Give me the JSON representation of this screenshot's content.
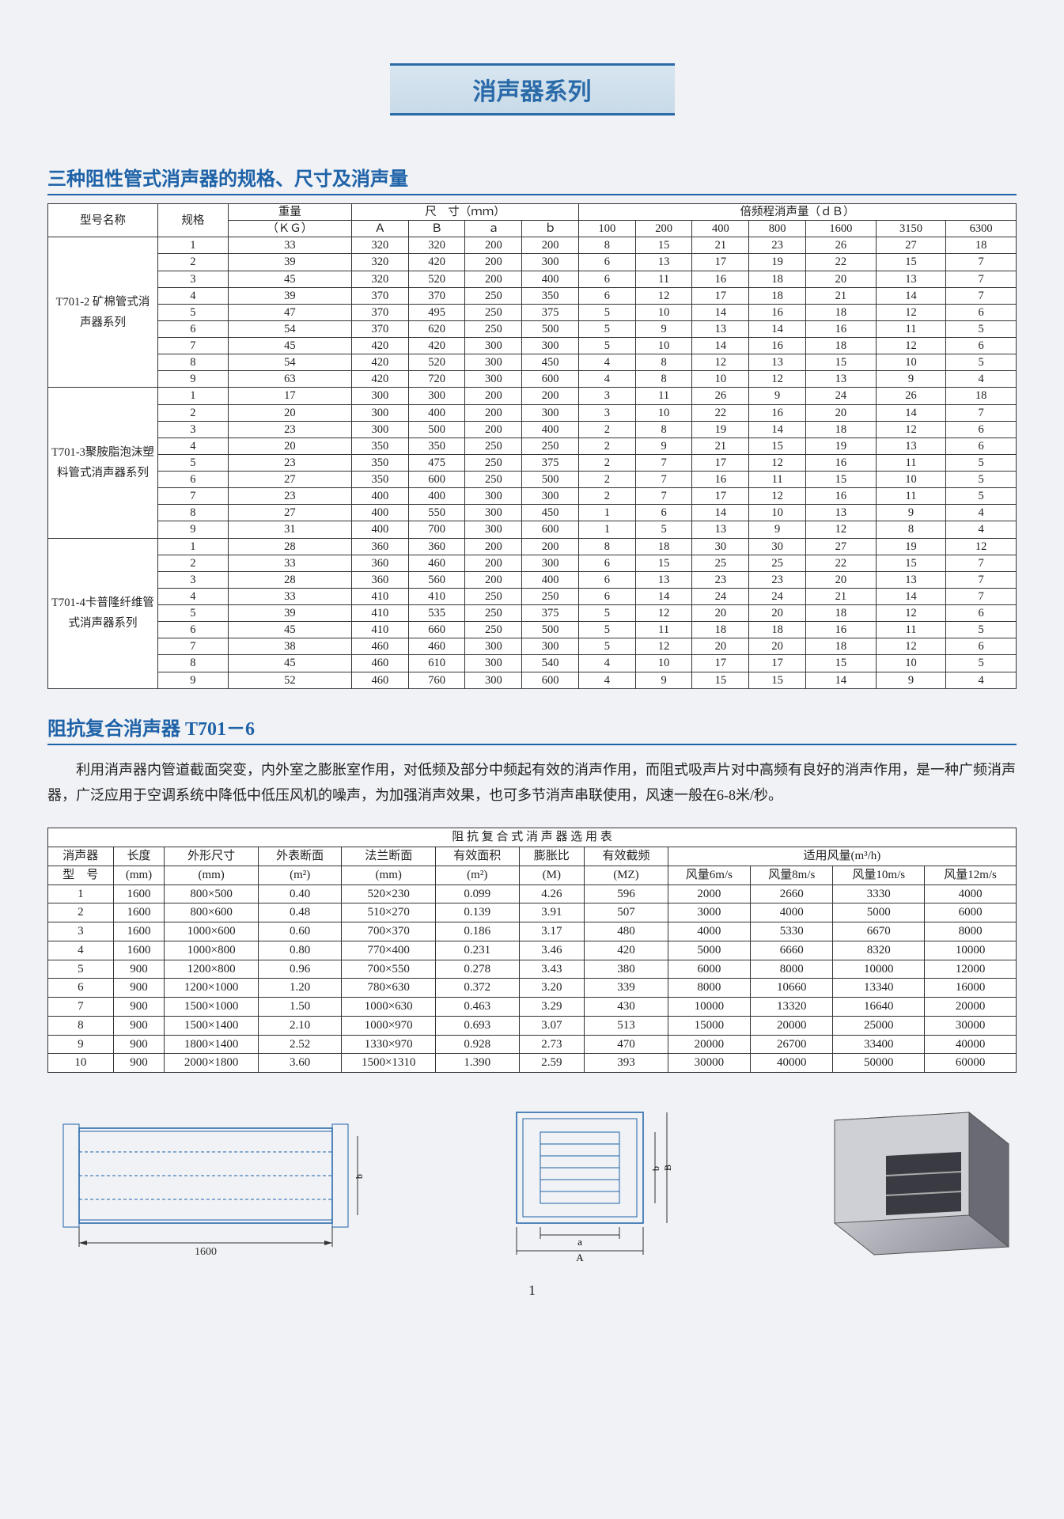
{
  "pageTitle": "消声器系列",
  "section1": {
    "heading": "三种阻性管式消声器的规格、尺寸及消声量",
    "topHeader": {
      "c1": "型号名称",
      "c2": "规格",
      "c3": "重量",
      "dimGroup": "尺　寸（ｍｍ）",
      "dbGroup": "倍频程消声量（ｄＢ）",
      "kg": "（ＫＧ）",
      "dimCols": [
        "Ａ",
        "Ｂ",
        "ａ",
        "ｂ"
      ],
      "dbCols": [
        "100",
        "200",
        "400",
        "800",
        "1600",
        "3150",
        "6300"
      ]
    },
    "groups": [
      {
        "name": "T701-2 矿棉管式消声器系列",
        "rows": [
          [
            "1",
            "33",
            "320",
            "320",
            "200",
            "200",
            "8",
            "15",
            "21",
            "23",
            "26",
            "27",
            "18"
          ],
          [
            "2",
            "39",
            "320",
            "420",
            "200",
            "300",
            "6",
            "13",
            "17",
            "19",
            "22",
            "15",
            "7"
          ],
          [
            "3",
            "45",
            "320",
            "520",
            "200",
            "400",
            "6",
            "11",
            "16",
            "18",
            "20",
            "13",
            "7"
          ],
          [
            "4",
            "39",
            "370",
            "370",
            "250",
            "350",
            "6",
            "12",
            "17",
            "18",
            "21",
            "14",
            "7"
          ],
          [
            "5",
            "47",
            "370",
            "495",
            "250",
            "375",
            "5",
            "10",
            "14",
            "16",
            "18",
            "12",
            "6"
          ],
          [
            "6",
            "54",
            "370",
            "620",
            "250",
            "500",
            "5",
            "9",
            "13",
            "14",
            "16",
            "11",
            "5"
          ],
          [
            "7",
            "45",
            "420",
            "420",
            "300",
            "300",
            "5",
            "10",
            "14",
            "16",
            "18",
            "12",
            "6"
          ],
          [
            "8",
            "54",
            "420",
            "520",
            "300",
            "450",
            "4",
            "8",
            "12",
            "13",
            "15",
            "10",
            "5"
          ],
          [
            "9",
            "63",
            "420",
            "720",
            "300",
            "600",
            "4",
            "8",
            "10",
            "12",
            "13",
            "9",
            "4"
          ]
        ]
      },
      {
        "name": "T701-3聚胺脂泡沫塑料管式消声器系列",
        "rows": [
          [
            "1",
            "17",
            "300",
            "300",
            "200",
            "200",
            "3",
            "11",
            "26",
            "9",
            "24",
            "26",
            "18"
          ],
          [
            "2",
            "20",
            "300",
            "400",
            "200",
            "300",
            "3",
            "10",
            "22",
            "16",
            "20",
            "14",
            "7"
          ],
          [
            "3",
            "23",
            "300",
            "500",
            "200",
            "400",
            "2",
            "8",
            "19",
            "14",
            "18",
            "12",
            "6"
          ],
          [
            "4",
            "20",
            "350",
            "350",
            "250",
            "250",
            "2",
            "9",
            "21",
            "15",
            "19",
            "13",
            "6"
          ],
          [
            "5",
            "23",
            "350",
            "475",
            "250",
            "375",
            "2",
            "7",
            "17",
            "12",
            "16",
            "11",
            "5"
          ],
          [
            "6",
            "27",
            "350",
            "600",
            "250",
            "500",
            "2",
            "7",
            "16",
            "11",
            "15",
            "10",
            "5"
          ],
          [
            "7",
            "23",
            "400",
            "400",
            "300",
            "300",
            "2",
            "7",
            "17",
            "12",
            "16",
            "11",
            "5"
          ],
          [
            "8",
            "27",
            "400",
            "550",
            "300",
            "450",
            "1",
            "6",
            "14",
            "10",
            "13",
            "9",
            "4"
          ],
          [
            "9",
            "31",
            "400",
            "700",
            "300",
            "600",
            "1",
            "5",
            "13",
            "9",
            "12",
            "8",
            "4"
          ]
        ]
      },
      {
        "name": "T701-4卡普隆纤维管式消声器系列",
        "rows": [
          [
            "1",
            "28",
            "360",
            "360",
            "200",
            "200",
            "8",
            "18",
            "30",
            "30",
            "27",
            "19",
            "12"
          ],
          [
            "2",
            "33",
            "360",
            "460",
            "200",
            "300",
            "6",
            "15",
            "25",
            "25",
            "22",
            "15",
            "7"
          ],
          [
            "3",
            "28",
            "360",
            "560",
            "200",
            "400",
            "6",
            "13",
            "23",
            "23",
            "20",
            "13",
            "7"
          ],
          [
            "4",
            "33",
            "410",
            "410",
            "250",
            "250",
            "6",
            "14",
            "24",
            "24",
            "21",
            "14",
            "7"
          ],
          [
            "5",
            "39",
            "410",
            "535",
            "250",
            "375",
            "5",
            "12",
            "20",
            "20",
            "18",
            "12",
            "6"
          ],
          [
            "6",
            "45",
            "410",
            "660",
            "250",
            "500",
            "5",
            "11",
            "18",
            "18",
            "16",
            "11",
            "5"
          ],
          [
            "7",
            "38",
            "460",
            "460",
            "300",
            "300",
            "5",
            "12",
            "20",
            "20",
            "18",
            "12",
            "6"
          ],
          [
            "8",
            "45",
            "460",
            "610",
            "300",
            "540",
            "4",
            "10",
            "17",
            "17",
            "15",
            "10",
            "5"
          ],
          [
            "9",
            "52",
            "460",
            "760",
            "300",
            "600",
            "4",
            "9",
            "15",
            "15",
            "14",
            "9",
            "4"
          ]
        ]
      }
    ]
  },
  "section2": {
    "heading": "阻抗复合消声器 T701－6",
    "paragraph": "利用消声器内管道截面突变，内外室之膨胀室作用，对低频及部分中频起有效的消声作用，而阻式吸声片对中高频有良好的消声作用，是一种广频消声器，广泛应用于空调系统中降低中低压风机的噪声，为加强消声效果，也可多节消声串联使用，风速一般在6-8米/秒。",
    "tableTitle": "阻 抗 复 合 式 消 声 器 选 用 表",
    "cols": {
      "c1a": "消声器",
      "c1b": "型　号",
      "c2a": "长度",
      "c2b": "(mm)",
      "c3a": "外形尺寸",
      "c3b": "(mm)",
      "c4a": "外表断面",
      "c4b": "(m²)",
      "c5a": "法兰断面",
      "c5b": "(mm)",
      "c6a": "有效面积",
      "c6b": "(m²)",
      "c7a": "膨胀比",
      "c7b": "(M)",
      "c8a": "有效截频",
      "c8b": "(MZ)",
      "flowGroup": "适用风量(m³/h)",
      "flowCols": [
        "风量6m/s",
        "风量8m/s",
        "风量10m/s",
        "风量12m/s"
      ]
    },
    "rows": [
      [
        "1",
        "1600",
        "800×500",
        "0.40",
        "520×230",
        "0.099",
        "4.26",
        "596",
        "2000",
        "2660",
        "3330",
        "4000"
      ],
      [
        "2",
        "1600",
        "800×600",
        "0.48",
        "510×270",
        "0.139",
        "3.91",
        "507",
        "3000",
        "4000",
        "5000",
        "6000"
      ],
      [
        "3",
        "1600",
        "1000×600",
        "0.60",
        "700×370",
        "0.186",
        "3.17",
        "480",
        "4000",
        "5330",
        "6670",
        "8000"
      ],
      [
        "4",
        "1600",
        "1000×800",
        "0.80",
        "770×400",
        "0.231",
        "3.46",
        "420",
        "5000",
        "6660",
        "8320",
        "10000"
      ],
      [
        "5",
        "900",
        "1200×800",
        "0.96",
        "700×550",
        "0.278",
        "3.43",
        "380",
        "6000",
        "8000",
        "10000",
        "12000"
      ],
      [
        "6",
        "900",
        "1200×1000",
        "1.20",
        "780×630",
        "0.372",
        "3.20",
        "339",
        "8000",
        "10660",
        "13340",
        "16000"
      ],
      [
        "7",
        "900",
        "1500×1000",
        "1.50",
        "1000×630",
        "0.463",
        "3.29",
        "430",
        "10000",
        "13320",
        "16640",
        "20000"
      ],
      [
        "8",
        "900",
        "1500×1400",
        "2.10",
        "1000×970",
        "0.693",
        "3.07",
        "513",
        "15000",
        "20000",
        "25000",
        "30000"
      ],
      [
        "9",
        "900",
        "1800×1400",
        "2.52",
        "1330×970",
        "0.928",
        "2.73",
        "470",
        "20000",
        "26700",
        "33400",
        "40000"
      ],
      [
        "10",
        "900",
        "2000×1800",
        "3.60",
        "1500×1310",
        "1.390",
        "2.59",
        "393",
        "30000",
        "40000",
        "50000",
        "60000"
      ]
    ]
  },
  "diagrams": {
    "sideview_length": "1600",
    "front_labels": {
      "a": "a",
      "A": "A",
      "b": "b",
      "B": "B"
    }
  },
  "pageNumber": "1"
}
